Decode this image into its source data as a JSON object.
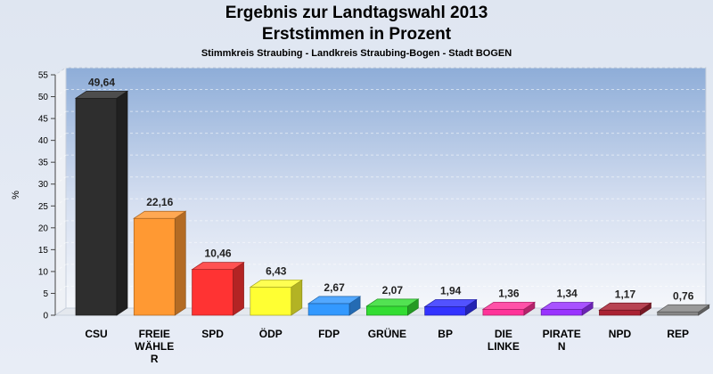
{
  "title": "Ergebnis zur Landtagswahl 2013",
  "title2": "Erststimmen in Prozent",
  "subtitle": "Stimmkreis Straubing - Landkreis Straubing-Bogen - Stadt BOGEN",
  "chart_data": {
    "type": "bar",
    "title": "Ergebnis zur Landtagswahl 2013 Erststimmen in Prozent",
    "subtitle": "Stimmkreis Straubing - Landkreis Straubing-Bogen - Stadt BOGEN",
    "xlabel": "",
    "ylabel": "%",
    "ylim": [
      0,
      55
    ],
    "yticks": [
      0,
      5,
      10,
      15,
      20,
      25,
      30,
      35,
      40,
      45,
      50,
      55
    ],
    "grid": true,
    "categories": [
      [
        "CSU"
      ],
      [
        "FREIE",
        "WÄHLE",
        "R"
      ],
      [
        "SPD"
      ],
      [
        "ÖDP"
      ],
      [
        "FDP"
      ],
      [
        "GRÜNE"
      ],
      [
        "BP"
      ],
      [
        "DIE",
        "LINKE"
      ],
      [
        "PIRATE",
        "N"
      ],
      [
        "NPD"
      ],
      [
        "REP"
      ]
    ],
    "values": [
      49.64,
      22.16,
      10.46,
      6.43,
      2.67,
      2.07,
      1.94,
      1.36,
      1.34,
      1.17,
      0.76
    ],
    "value_labels": [
      "49,64",
      "22,16",
      "10,46",
      "6,43",
      "2,67",
      "2,07",
      "1,94",
      "1,36",
      "1,34",
      "1,17",
      "0,76"
    ],
    "colors": [
      "#2e2e2e",
      "#ff9933",
      "#ff3333",
      "#ffff33",
      "#3399ff",
      "#33dd33",
      "#3333ff",
      "#ff3399",
      "#9933ff",
      "#aa2233",
      "#888888"
    ]
  }
}
